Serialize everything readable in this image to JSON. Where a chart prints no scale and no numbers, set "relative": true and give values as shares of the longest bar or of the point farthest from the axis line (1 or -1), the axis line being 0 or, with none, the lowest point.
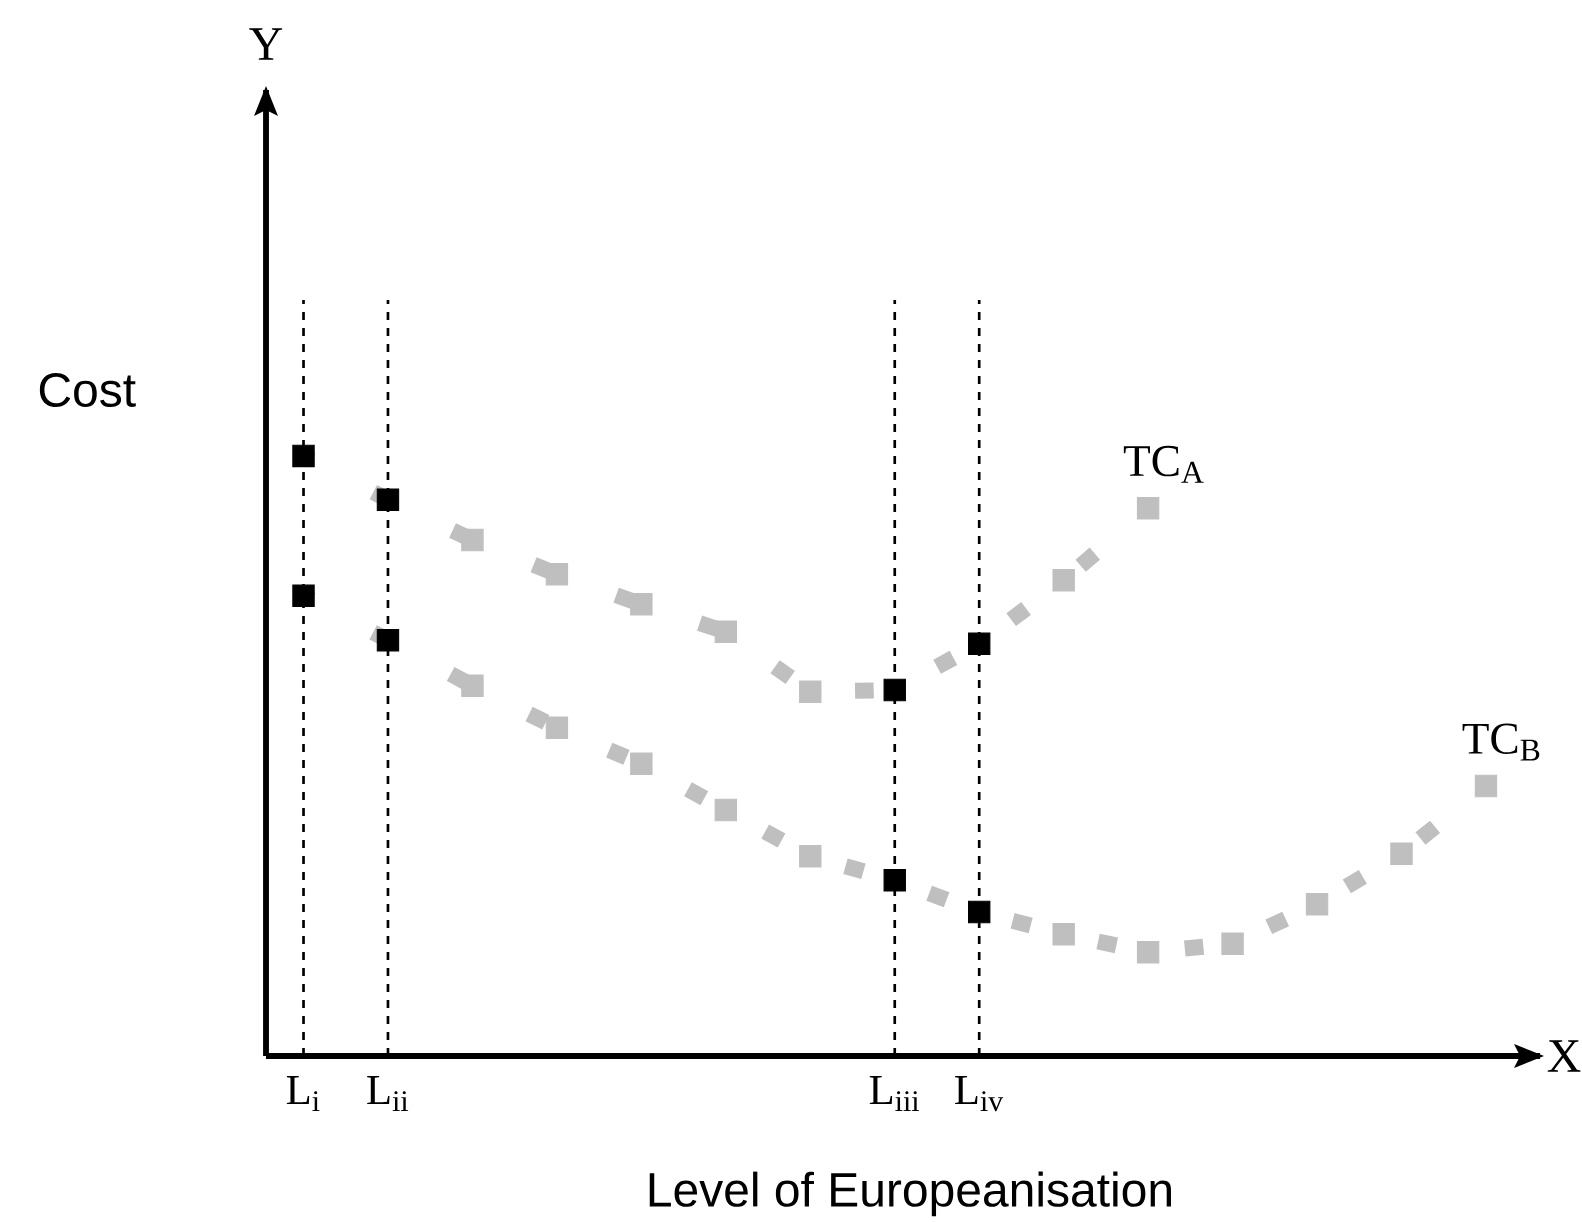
{
  "chart_data": {
    "type": "line",
    "relative": true,
    "marker": "square",
    "line_style": "dashed",
    "grid": "x",
    "xlabel": "Level of Europeanisation",
    "ylabel": "Cost",
    "annotations": [
      "Y",
      "X"
    ],
    "categories": [
      "L$_{i}$",
      "L$_{ii}$",
      null,
      null,
      null,
      null,
      null,
      "L$_{iii}$",
      "L$_{iv}$",
      null,
      null,
      null,
      null,
      null,
      null
    ],
    "series": [
      {
        "name": "TC$_{A}$",
        "color": "#bfbfbf",
        "values": [
          1.0,
          0.927,
          0.86,
          0.803,
          0.753,
          0.707,
          0.607,
          0.61,
          0.687,
          0.793,
          0.913,
          null,
          null,
          null,
          null
        ],
        "colors": [
          "#000000",
          "#000000",
          "#bfbfbf",
          "#bfbfbf",
          "#bfbfbf",
          "#bfbfbf",
          "#bfbfbf",
          "#000000",
          "#000000",
          "#bfbfbf",
          "#bfbfbf",
          null,
          null,
          null,
          null
        ]
      },
      {
        "name": "TC$_{B}$",
        "color": "#bfbfbf",
        "values": [
          0.767,
          0.693,
          0.617,
          0.547,
          0.487,
          0.41,
          0.333,
          0.293,
          0.24,
          0.203,
          0.173,
          0.187,
          0.253,
          0.337,
          0.45
        ],
        "colors": [
          "#000000",
          "#000000",
          "#bfbfbf",
          "#bfbfbf",
          "#bfbfbf",
          "#bfbfbf",
          "#bfbfbf",
          "#000000",
          "#000000",
          "#bfbfbf",
          "#bfbfbf",
          "#bfbfbf",
          "#bfbfbf",
          "#bfbfbf",
          "#bfbfbf"
        ]
      }
    ]
  }
}
